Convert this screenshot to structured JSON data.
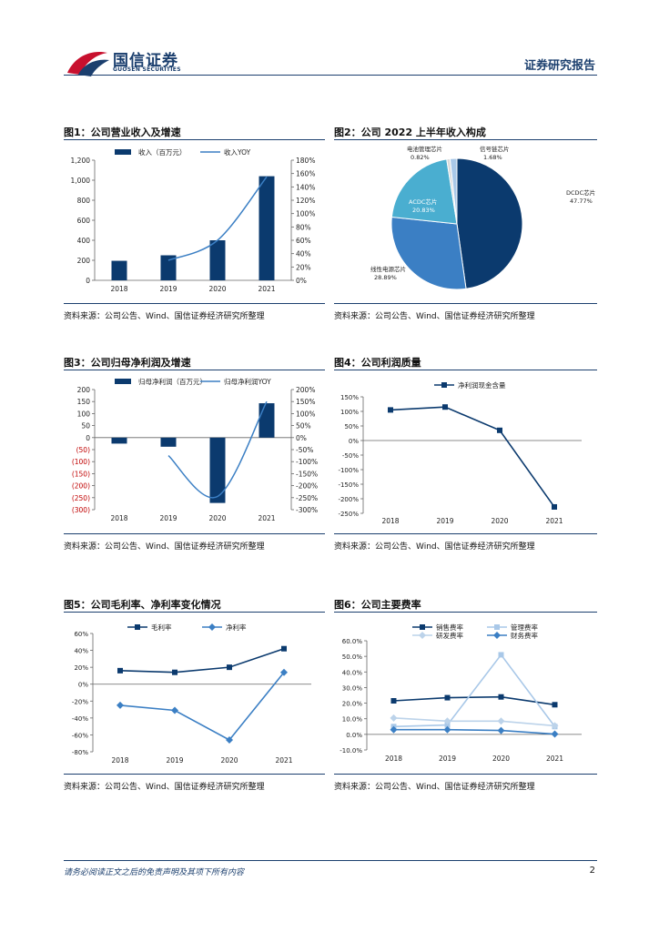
{
  "header": {
    "logo_cn": "国信证券",
    "logo_en": "GUOSEN SECURITIES",
    "title": "证券研究报告"
  },
  "source_text": "资料来源：公司公告、Wind、国信证券经济研究所整理",
  "footer": {
    "disclaimer": "请务必阅读正文之后的免责声明及其项下所有内容",
    "page": "2"
  },
  "colors": {
    "navy": "#0b3a6e",
    "blue": "#3b7fc4",
    "light": "#a9c8e8",
    "mid": "#5b9bd5",
    "neg": "#c00000"
  },
  "figures": {
    "fig1": {
      "title": "图1：公司营业收入及增速"
    },
    "fig2": {
      "title": "图2：公司 2022 上半年收入构成"
    },
    "fig3": {
      "title": "图3：公司归母净利润及增速"
    },
    "fig4": {
      "title": "图4：公司利润质量"
    },
    "fig5": {
      "title": "图5：公司毛利率、净利率变化情况"
    },
    "fig6": {
      "title": "图6：公司主要费率"
    }
  },
  "chart_data": [
    {
      "id": "fig1",
      "type": "bar",
      "categories": [
        "2018",
        "2019",
        "2020",
        "2021"
      ],
      "series": [
        {
          "name": "收入（百万元）",
          "kind": "bar",
          "axis": "left",
          "values": [
            195,
            250,
            400,
            1040
          ]
        },
        {
          "name": "收入YOY",
          "kind": "line",
          "axis": "right",
          "values": [
            null,
            30,
            60,
            155
          ]
        }
      ],
      "ylim_left": [
        0,
        1200
      ],
      "yticks_left": [
        "0",
        "200",
        "400",
        "600",
        "800",
        "1,000",
        "1,200"
      ],
      "ylim_right": [
        0,
        180
      ],
      "yticks_right": [
        "0%",
        "20%",
        "40%",
        "60%",
        "80%",
        "100%",
        "120%",
        "140%",
        "160%",
        "180%"
      ]
    },
    {
      "id": "fig2",
      "type": "pie",
      "slices": [
        {
          "label": "DCDC芯片",
          "value": 47.77,
          "text": "47.77%"
        },
        {
          "label": "线性电源芯片",
          "value": 28.89,
          "text": "28.89%"
        },
        {
          "label": "ACDC芯片",
          "value": 20.83,
          "text": "20.83%"
        },
        {
          "label": "电池管理芯片",
          "value": 0.82,
          "text": "0.82%"
        },
        {
          "label": "信号链芯片",
          "value": 1.68,
          "text": "1.68%"
        }
      ]
    },
    {
      "id": "fig3",
      "type": "bar",
      "categories": [
        "2018",
        "2019",
        "2020",
        "2021"
      ],
      "series": [
        {
          "name": "归母净利润（百万元）",
          "kind": "bar",
          "axis": "left",
          "values": [
            -25,
            -38,
            -272,
            143
          ]
        },
        {
          "name": "归母净利润YOY",
          "kind": "line",
          "axis": "right",
          "values": [
            null,
            -75,
            -245,
            150
          ]
        }
      ],
      "ylim_left": [
        -300,
        200
      ],
      "yticks_left": [
        "(300)",
        "(250)",
        "(200)",
        "(150)",
        "(100)",
        "(50)",
        "0",
        "50",
        "100",
        "150",
        "200"
      ],
      "ylim_right": [
        -300,
        200
      ],
      "yticks_right": [
        "-300%",
        "-250%",
        "-200%",
        "-150%",
        "-100%",
        "-50%",
        "0%",
        "50%",
        "100%",
        "150%",
        "200%"
      ]
    },
    {
      "id": "fig4",
      "type": "line",
      "categories": [
        "2018",
        "2019",
        "2020",
        "2021"
      ],
      "series": [
        {
          "name": "净利润现金含量",
          "values": [
            105,
            115,
            35,
            -228
          ]
        }
      ],
      "ylim": [
        -250,
        150
      ],
      "yticks": [
        "-250%",
        "-200%",
        "-150%",
        "-100%",
        "-50%",
        "0%",
        "50%",
        "100%",
        "150%"
      ]
    },
    {
      "id": "fig5",
      "type": "line",
      "categories": [
        "2018",
        "2019",
        "2020",
        "2021"
      ],
      "series": [
        {
          "name": "毛利率",
          "values": [
            16,
            14,
            20,
            42
          ]
        },
        {
          "name": "净利率",
          "values": [
            -25,
            -31,
            -66,
            14
          ]
        }
      ],
      "ylim": [
        -80,
        60
      ],
      "yticks": [
        "-80%",
        "-60%",
        "-40%",
        "-20%",
        "0%",
        "20%",
        "40%",
        "60%"
      ]
    },
    {
      "id": "fig6",
      "type": "line",
      "categories": [
        "2018",
        "2019",
        "2020",
        "2021"
      ],
      "series": [
        {
          "name": "销售费率",
          "values": [
            21.5,
            23.5,
            24.0,
            19.0
          ]
        },
        {
          "name": "管理费率",
          "values": [
            5.0,
            6.0,
            51.0,
            5.0
          ]
        },
        {
          "name": "研发费率",
          "values": [
            10.5,
            8.5,
            8.5,
            5.5
          ]
        },
        {
          "name": "财务费率",
          "values": [
            3.0,
            3.0,
            2.5,
            0.2
          ]
        }
      ],
      "ylim": [
        -10,
        60
      ],
      "yticks": [
        "-10.0%",
        "0.0%",
        "10.0%",
        "20.0%",
        "30.0%",
        "40.0%",
        "50.0%",
        "60.0%"
      ]
    }
  ]
}
